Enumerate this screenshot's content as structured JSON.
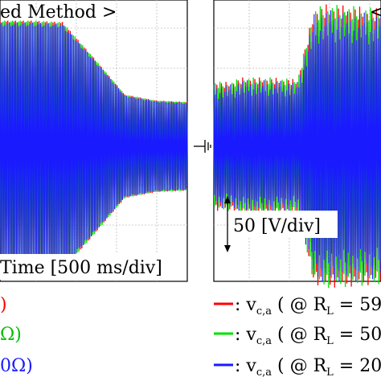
{
  "chart_data": [
    {
      "type": "line",
      "title": "ed Method >",
      "xlabel": "Time [500 ms/div]",
      "ylabel": "",
      "grid": true,
      "series": [
        {
          "name": "",
          "color": "#ff0000"
        },
        {
          "name": "",
          "color": "#00e000"
        },
        {
          "name": "",
          "color": "#1a1aff"
        }
      ],
      "envelope_amplitude_V": {
        "time_ms": [
          0,
          500,
          1000,
          1500,
          2000,
          2500,
          3000
        ],
        "amplitude": [
          170,
          170,
          168,
          120,
          70,
          62,
          60
        ]
      }
    },
    {
      "type": "line",
      "title": "< ",
      "ylabel": "50 [V/div]",
      "grid": true,
      "series": [
        {
          "name": "— : v_c,a ( @ R_L = 59",
          "color": "#ff0000"
        },
        {
          "name": "— : v_c,a ( @ R_L = 50",
          "color": "#00e000"
        },
        {
          "name": "— : v_c,a ( @ R_L = 20",
          "color": "#1a1aff"
        }
      ],
      "envelope_amplitude_V": {
        "time_ms": [
          0,
          300,
          500,
          1000,
          1500,
          1800,
          2000,
          2500,
          3000
        ],
        "amplitude": [
          75,
          75,
          80,
          80,
          78,
          160,
          165,
          163,
          160
        ]
      }
    }
  ],
  "left_legend": [
    {
      "text": ")",
      "color": "#ff0000"
    },
    {
      "text": "Ω)",
      "color": "#00c000"
    },
    {
      "text": "0Ω)",
      "color": "#1a1aff"
    }
  ],
  "right_legend": [
    {
      "dash": "—",
      "text": ": v",
      "sub": "c,a",
      "rest": " ( @ R",
      "rsub": "L",
      "tail": " = 59",
      "color": "#ff0000"
    },
    {
      "dash": "—",
      "text": ": v",
      "sub": "c,a",
      "rest": " ( @ R",
      "rsub": "L",
      "tail": " = 50",
      "color": "#00e000"
    },
    {
      "dash": "—",
      "text": ": v",
      "sub": "c,a",
      "rest": " ( @ R",
      "rsub": "L",
      "tail": " = 20",
      "color": "#1a1aff"
    }
  ],
  "ground_symbol": "ground-symbol-icon"
}
